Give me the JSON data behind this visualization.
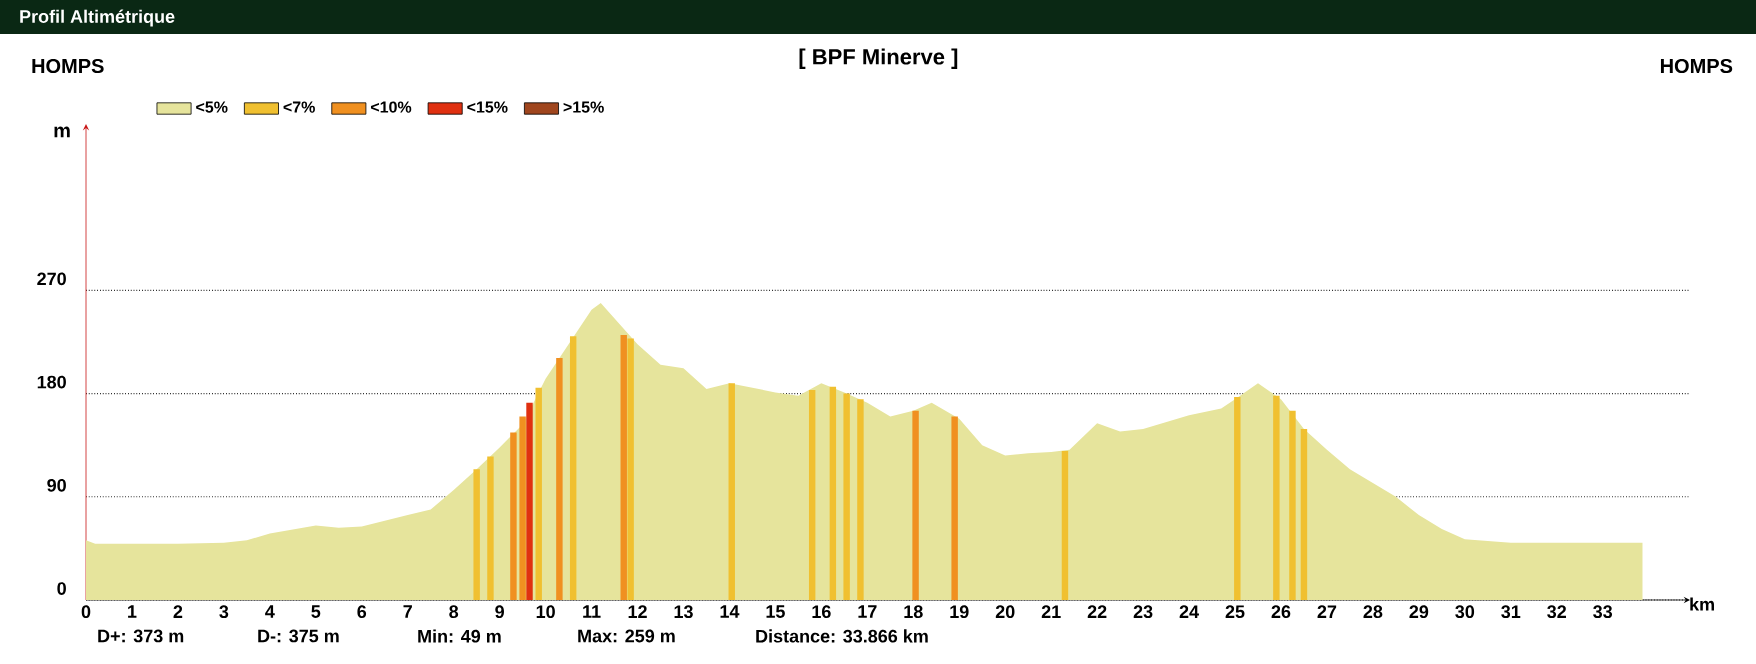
{
  "chart_data": {
    "type": "area",
    "title": "[ BPF Minerve ]",
    "xlabel": "km",
    "ylabel": "m",
    "annotations": [
      "Profil Altimétrique",
      "HOMPS",
      "HOMPS",
      "D+: 373 m",
      "D-: 375 m",
      "Min: 49 m",
      "Max: 259 m",
      "Distance: 33.866 km"
    ],
    "series": [
      {
        "name": "<5%",
        "color": "#e6e49c",
        "x": [
          0,
          0.2,
          1,
          2,
          3,
          3.5,
          4,
          5,
          5.5,
          6,
          7,
          7.5,
          8,
          8.5,
          9,
          9.5,
          10,
          10.5,
          11,
          11.2,
          12,
          12.5,
          13,
          13.5,
          14,
          14.5,
          15,
          15.5,
          16,
          16.5,
          17,
          17.5,
          18,
          18.4,
          19,
          19.5,
          20,
          20.5,
          21,
          21.4,
          22,
          22.5,
          23,
          24,
          24.7,
          25,
          25.5,
          26,
          26.5,
          27,
          27.5,
          28,
          28.5,
          29,
          29.5,
          30,
          31,
          32,
          33.866
        ],
        "values": [
          52,
          49,
          49,
          49,
          50,
          52,
          58,
          65,
          63,
          64,
          74,
          79,
          96,
          114,
          133,
          153,
          193,
          223,
          253,
          259,
          223,
          205,
          202,
          184,
          189,
          185,
          181,
          178,
          189,
          181,
          172,
          160,
          165,
          172,
          158,
          135,
          126,
          128,
          129,
          131,
          154,
          147,
          149,
          161,
          167,
          175,
          189,
          175,
          149,
          131,
          114,
          102,
          90,
          74,
          62,
          53,
          50,
          50,
          50
        ]
      },
      {
        "name": "<7%",
        "color": "#f0c030",
        "type": "bar",
        "x": [
          8.5,
          8.8,
          9.85,
          10.6,
          11.85,
          14.05,
          15.8,
          16.25,
          16.55,
          16.85,
          21.3,
          25.05,
          25.9,
          26.25,
          26.5
        ],
        "values": [
          114,
          125,
          185,
          230,
          228,
          189,
          183,
          186,
          180,
          175,
          130,
          177,
          178,
          165,
          149
        ]
      },
      {
        "name": "<10%",
        "color": "#f09020",
        "type": "bar",
        "x": [
          9.3,
          9.5,
          10.3,
          11.7,
          18.05,
          18.9
        ],
        "values": [
          146,
          160,
          211,
          231,
          165,
          160
        ]
      },
      {
        "name": "<15%",
        "color": "#e03010",
        "type": "bar",
        "x": [
          9.65
        ],
        "values": [
          172
        ]
      },
      {
        "name": ">15%",
        "color": "#a0461e",
        "type": "bar"
      }
    ],
    "xlim": [
      0,
      34.9
    ],
    "ylim": [
      0,
      415
    ],
    "xticks": [
      0,
      1,
      2,
      3,
      4,
      5,
      6,
      7,
      8,
      9,
      10,
      11,
      12,
      13,
      14,
      15,
      16,
      17,
      18,
      19,
      20,
      21,
      22,
      23,
      24,
      25,
      26,
      27,
      28,
      29,
      30,
      31,
      32,
      33
    ],
    "yticks": [
      0,
      90,
      180,
      270
    ],
    "grid": "y",
    "legend": "top left",
    "marker": "none"
  }
}
